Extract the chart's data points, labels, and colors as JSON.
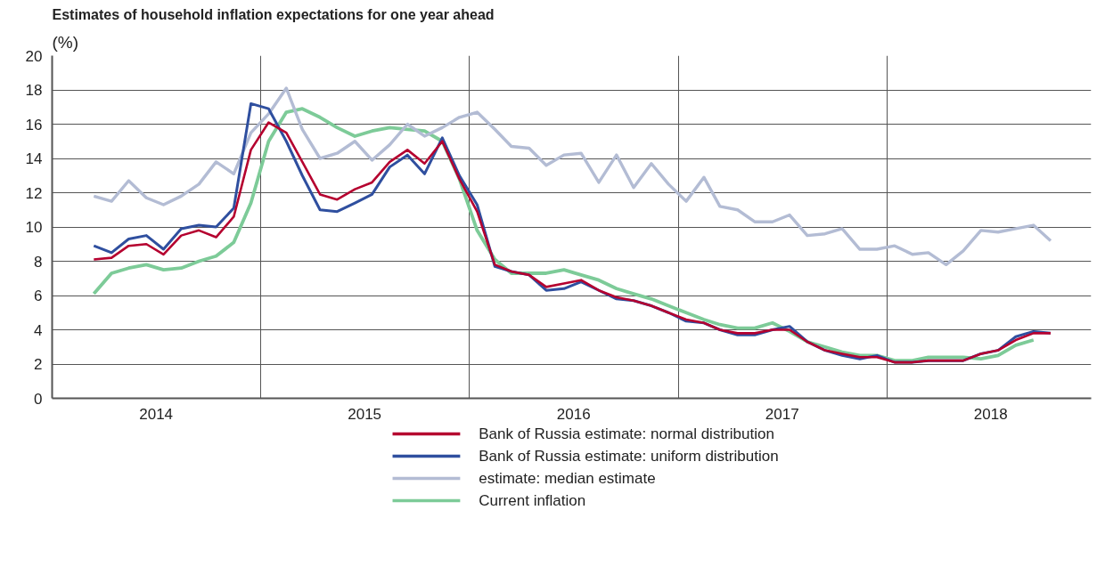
{
  "chart_data": {
    "type": "line",
    "title": "Estimates of household inflation expectations for one year ahead",
    "ylabel": "(%)",
    "x": [
      "2014-03-15",
      "2014-04-15",
      "2014-05-15",
      "2014-06-15",
      "2014-07-15",
      "2014-08-15",
      "2014-09-15",
      "2014-10-15",
      "2014-11-15",
      "2014-12-15",
      "2015-01-15",
      "2015-02-15",
      "2015-03-15",
      "2015-04-15",
      "2015-05-15",
      "2015-06-15",
      "2015-07-15",
      "2015-08-15",
      "2015-09-15",
      "2015-10-15",
      "2015-11-15",
      "2015-12-15",
      "2016-01-15",
      "2016-02-15",
      "2016-03-15",
      "2016-04-15",
      "2016-05-15",
      "2016-06-15",
      "2016-07-15",
      "2016-08-15",
      "2016-09-15",
      "2016-10-15",
      "2016-11-15",
      "2016-12-15",
      "2017-01-15",
      "2017-02-15",
      "2017-03-15",
      "2017-04-15",
      "2017-05-15",
      "2017-06-15",
      "2017-07-15",
      "2017-08-15",
      "2017-09-15",
      "2017-10-15",
      "2017-11-15",
      "2017-12-15",
      "2018-01-15",
      "2018-02-15",
      "2018-03-15",
      "2018-04-15",
      "2018-05-15",
      "2018-06-15",
      "2018-07-15",
      "2018-08-15",
      "2018-09-15",
      "2018-10-15"
    ],
    "series": [
      {
        "name": "Bank of Russia estimate: normal distribution",
        "color": "#b5002f",
        "values": [
          8.1,
          8.2,
          8.9,
          9.0,
          8.4,
          9.5,
          9.8,
          9.4,
          10.6,
          14.5,
          16.1,
          15.5,
          13.8,
          11.9,
          11.6,
          12.2,
          12.6,
          13.8,
          14.5,
          13.7,
          15.0,
          12.8,
          10.9,
          7.8,
          7.4,
          7.2,
          6.5,
          6.7,
          6.9,
          6.3,
          5.9,
          5.7,
          5.4,
          5.0,
          4.6,
          4.4,
          4.0,
          3.8,
          3.8,
          4.0,
          4.0,
          3.3,
          2.8,
          2.6,
          2.4,
          2.4,
          2.1,
          2.1,
          2.2,
          2.2,
          2.2,
          2.6,
          2.8,
          3.4,
          3.8,
          3.8
        ]
      },
      {
        "name": "Bank of Russia estimate: uniform distribution",
        "color": "#2f4f9f",
        "values": [
          8.9,
          8.5,
          9.3,
          9.5,
          8.7,
          9.9,
          10.1,
          10.0,
          11.1,
          17.2,
          16.9,
          15.0,
          13.0,
          11.0,
          10.9,
          11.4,
          11.9,
          13.5,
          14.2,
          13.1,
          15.2,
          13.0,
          11.3,
          7.7,
          7.4,
          7.2,
          6.3,
          6.4,
          6.8,
          6.3,
          5.8,
          5.7,
          5.4,
          5.0,
          4.5,
          4.4,
          4.0,
          3.7,
          3.7,
          4.0,
          4.2,
          3.3,
          2.8,
          2.5,
          2.3,
          2.5,
          2.1,
          2.1,
          2.2,
          2.2,
          2.2,
          2.6,
          2.8,
          3.6,
          3.9,
          3.8
        ]
      },
      {
        "name": "estimate: median estimate",
        "color": "#b3bcd4",
        "values": [
          11.8,
          11.5,
          12.7,
          11.7,
          11.3,
          11.8,
          12.5,
          13.8,
          13.1,
          15.5,
          16.6,
          18.1,
          15.7,
          14.0,
          14.3,
          15.0,
          13.9,
          14.8,
          16.0,
          15.3,
          15.8,
          16.4,
          16.7,
          15.7,
          14.7,
          14.6,
          13.6,
          14.2,
          14.3,
          12.6,
          14.2,
          12.3,
          13.7,
          12.5,
          11.5,
          12.9,
          11.2,
          11.0,
          10.3,
          10.3,
          10.7,
          9.5,
          9.6,
          9.9,
          8.7,
          8.7,
          8.9,
          8.4,
          8.5,
          7.8,
          8.6,
          9.8,
          9.7,
          9.9,
          10.1,
          9.2
        ]
      },
      {
        "name": "Current inflation",
        "color": "#7dcb98",
        "values": [
          6.1,
          7.3,
          7.6,
          7.8,
          7.5,
          7.6,
          8.0,
          8.3,
          9.1,
          11.4,
          15.0,
          16.7,
          16.9,
          16.4,
          15.8,
          15.3,
          15.6,
          15.8,
          15.7,
          15.6,
          15.0,
          12.8,
          9.8,
          8.1,
          7.3,
          7.3,
          7.3,
          7.5,
          7.2,
          6.9,
          6.4,
          6.1,
          5.8,
          5.4,
          5.0,
          4.6,
          4.3,
          4.1,
          4.1,
          4.4,
          3.9,
          3.3,
          3.0,
          2.7,
          2.5,
          2.5,
          2.2,
          2.2,
          2.4,
          2.4,
          2.4,
          2.3,
          2.5,
          3.1,
          3.4,
          null
        ]
      }
    ],
    "xlim": [
      "2014-01-01",
      "2018-12-25"
    ],
    "xticks": [
      {
        "value": "2014-07-02",
        "label": "2014"
      },
      {
        "value": "2015-01-01",
        "label": null
      },
      {
        "value": "2015-07-02",
        "label": "2015"
      },
      {
        "value": "2016-01-01",
        "label": null
      },
      {
        "value": "2016-07-02",
        "label": "2016"
      },
      {
        "value": "2017-01-01",
        "label": null
      },
      {
        "value": "2017-07-02",
        "label": "2017"
      },
      {
        "value": "2018-01-01",
        "label": null
      },
      {
        "value": "2018-07-02",
        "label": "2018"
      }
    ],
    "ylim": [
      0,
      20
    ],
    "yticks": [
      0,
      2,
      4,
      6,
      8,
      10,
      12,
      14,
      16,
      18,
      20
    ],
    "grid": true,
    "legend": "bottom",
    "marker": "none",
    "line_style": "solid"
  }
}
